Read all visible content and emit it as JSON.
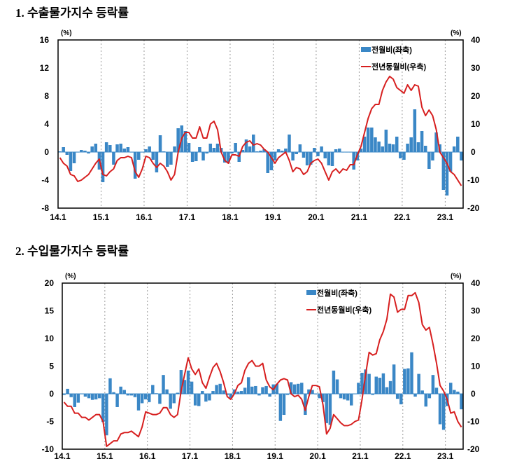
{
  "colors": {
    "bar": "#3a87c6",
    "line": "#d71f1f",
    "grid": "#9a9a9a"
  },
  "chart_data": [
    {
      "type": "bar+line",
      "title": "1. 수출물가지수 등락률",
      "unit_left": "(%)",
      "unit_right": "(%)",
      "x_tick_labels": [
        "14.1",
        "15.1",
        "16.1",
        "17.1",
        "18.1",
        "19.1",
        "20.1",
        "21.1",
        "22.1",
        "23.1"
      ],
      "x_start": "14.1",
      "x_end": "23.5",
      "y_left": {
        "lim": [
          -8,
          16
        ],
        "ticks": [
          -8,
          -4,
          0,
          4,
          8,
          12,
          16
        ]
      },
      "y_right": {
        "lim": [
          -20,
          40
        ],
        "ticks": [
          -20,
          -10,
          0,
          10,
          20,
          30,
          40
        ]
      },
      "grid": "vertical dashed at each January",
      "legend_position": "top-right",
      "series": [
        {
          "name": "전월비(좌축)",
          "type": "bar",
          "axis": "left",
          "values": [
            0.1,
            0.7,
            -0.4,
            -2.7,
            -1.6,
            0,
            0.3,
            0.2,
            -0.2,
            0.8,
            1.2,
            -2.5,
            -4.3,
            1.4,
            1.0,
            -1.8,
            1.1,
            1.2,
            0.5,
            0.7,
            0,
            -3.8,
            -1.1,
            0,
            0.4,
            0.8,
            -1.1,
            -2.9,
            2.4,
            0.1,
            -2.1,
            -1.8,
            0.8,
            3.4,
            3.8,
            3.0,
            1.3,
            -1.4,
            -1.3,
            0.7,
            -1.2,
            -0.2,
            1.2,
            0.6,
            1.2,
            0.6,
            -1.5,
            -1.5,
            -0.2,
            1.3,
            -1.4,
            0.3,
            1.8,
            0.8,
            2.5,
            0.1,
            0.2,
            0.4,
            -3.0,
            -2.6,
            -1.2,
            0.4,
            0.2,
            0.5,
            2.5,
            -1.2,
            -0.3,
            1.1,
            -0.8,
            -1.9,
            -1.8,
            0.6,
            -0.6,
            0.8,
            -0.9,
            -1.9,
            -2.0,
            0.4,
            0.5,
            0,
            0,
            0,
            -2.5,
            -1.2,
            0.5,
            2.2,
            3.5,
            3.5,
            2.1,
            1.5,
            0.8,
            3.2,
            1.2,
            1.1,
            2.2,
            -0.9,
            -1.1,
            1.2,
            2.1,
            6.1,
            1.4,
            3.0,
            0.9,
            -2.4,
            -1.2,
            2.8,
            1.1,
            -5.4,
            -6.2,
            -2.8,
            0.8,
            2.2,
            -1.2
          ]
        },
        {
          "name": "전년동월비(우축)",
          "type": "line",
          "axis": "right",
          "values": [
            -2,
            -4,
            -5,
            -8,
            -8.5,
            -10.5,
            -10,
            -9,
            -8,
            -6,
            -4,
            -2.5,
            -8,
            -8.5,
            -7,
            -6,
            -3,
            -2,
            -2,
            -1.5,
            -2,
            -7,
            -9,
            -6,
            -1.5,
            -2,
            -4,
            -5.5,
            -4,
            -5,
            -7,
            -10,
            -8,
            0,
            5,
            7,
            7,
            5,
            5,
            9,
            5,
            5,
            10,
            11,
            8,
            0,
            -3,
            -4,
            -1,
            -1,
            -1.5,
            2,
            3.5,
            4,
            2.5,
            3,
            2.5,
            1,
            0,
            -2,
            -4,
            -2,
            -1,
            0,
            -3,
            -7,
            -5.5,
            -6,
            -8,
            -7,
            -4,
            -3,
            -2.5,
            -4,
            -7,
            -10,
            -7,
            -6,
            -7.5,
            -6,
            -6.5,
            -4.5,
            -4.5,
            -1,
            2,
            7,
            12,
            15.5,
            17,
            17,
            22,
            25,
            27,
            26,
            23,
            22,
            21,
            24,
            22,
            24,
            23.5,
            16,
            13,
            15,
            13,
            8,
            0,
            -2,
            -4,
            -7,
            -8,
            -10,
            -12
          ]
        }
      ]
    },
    {
      "type": "bar+line",
      "title": "2. 수입물가지수 등락률",
      "unit_left": "(%)",
      "unit_right": "(%)",
      "x_tick_labels": [
        "14.1",
        "15.1",
        "16.1",
        "17.1",
        "18.1",
        "19.1",
        "20.1",
        "21.1",
        "22.1",
        "23.1"
      ],
      "x_start": "14.1",
      "x_end": "23.5",
      "y_left": {
        "lim": [
          -10,
          20
        ],
        "ticks": [
          -10,
          -5,
          0,
          5,
          10,
          15,
          20
        ]
      },
      "y_right": {
        "lim": [
          -20,
          40
        ],
        "ticks": [
          -20,
          -10,
          0,
          10,
          20,
          30,
          40
        ]
      },
      "grid": "vertical dashed at each January",
      "legend_position": "top-right",
      "series": [
        {
          "name": "전월비(좌축)",
          "type": "bar",
          "axis": "left",
          "values": [
            -0.2,
            0.9,
            -0.6,
            -2.4,
            -1.6,
            0,
            -0.5,
            -0.8,
            -1.1,
            -1,
            -0.8,
            -5.1,
            -7.5,
            2.8,
            0.3,
            -2.4,
            1.3,
            0.7,
            -0.3,
            -0.3,
            -0.6,
            -3,
            -1.7,
            -1,
            -1.5,
            1.6,
            0.1,
            -1.8,
            3.4,
            0.8,
            -2.7,
            -1.7,
            0.2,
            4.3,
            2.5,
            4.2,
            2.2,
            -2.1,
            -2.2,
            0.5,
            -1.4,
            -1.2,
            0.5,
            1.6,
            1.8,
            0.6,
            -0.2,
            -0.8,
            0.8,
            0.4,
            0.5,
            1.1,
            3.0,
            1.3,
            1.4,
            -0.3,
            1.2,
            1.4,
            -0.5,
            1.7,
            1.8,
            -4.9,
            -3.8,
            -0.2,
            2.1,
            1.7,
            1.8,
            2.0,
            -3.8,
            0.8,
            0.7,
            -0.1,
            -0.8,
            -1.5,
            -5.3,
            -5.6,
            4.2,
            2.6,
            -0.8,
            -1.0,
            -1.2,
            -2.1,
            0,
            2.0,
            3.8,
            4.4,
            3.6,
            -0.2,
            3.1,
            2.9,
            3.7,
            1.2,
            2.3,
            5.3,
            -0.9,
            -1.9,
            4.5,
            4.6,
            7.5,
            -0.5,
            3.6,
            0.6,
            -2.3,
            -0.8,
            3.4,
            1.1,
            -5.5,
            -6.5,
            -2.2,
            2.0,
            0.7,
            0.4,
            -2.8
          ]
        },
        {
          "name": "전년동월비(우축)",
          "type": "line",
          "axis": "right",
          "values": [
            -3,
            -4.5,
            -4.5,
            -7,
            -7,
            -8.5,
            -8.5,
            -9.5,
            -8.5,
            -7.5,
            -7.5,
            -10,
            -19,
            -18,
            -17,
            -17,
            -14.5,
            -14,
            -14,
            -13.5,
            -14.5,
            -15.5,
            -12,
            -6.5,
            -7,
            -7.5,
            -7.5,
            -7,
            -5,
            -5,
            -7.5,
            -8.5,
            -7.5,
            1,
            7,
            13,
            9,
            7,
            9,
            4,
            2,
            6,
            9.5,
            11,
            8,
            4,
            -1,
            -2,
            0,
            3,
            4,
            8.5,
            11,
            12,
            10,
            10,
            11,
            5,
            2.5,
            1.5,
            3.5,
            5,
            5.5,
            5,
            0,
            -1,
            -0.5,
            -2,
            -6,
            -1,
            3,
            3,
            2.5,
            -4,
            -14.5,
            -12.5,
            -7.5,
            -9,
            -10.5,
            -11.5,
            -11.5,
            -11,
            -10,
            -9.5,
            -2,
            7,
            15,
            14,
            14.5,
            19.5,
            22.5,
            27,
            36,
            35,
            29.5,
            30.5,
            30.5,
            35.5,
            35.5,
            36.5,
            33,
            25,
            23,
            24,
            18,
            11,
            3,
            1,
            -2,
            -7,
            -6.5,
            -10,
            -12
          ]
        }
      ]
    }
  ]
}
